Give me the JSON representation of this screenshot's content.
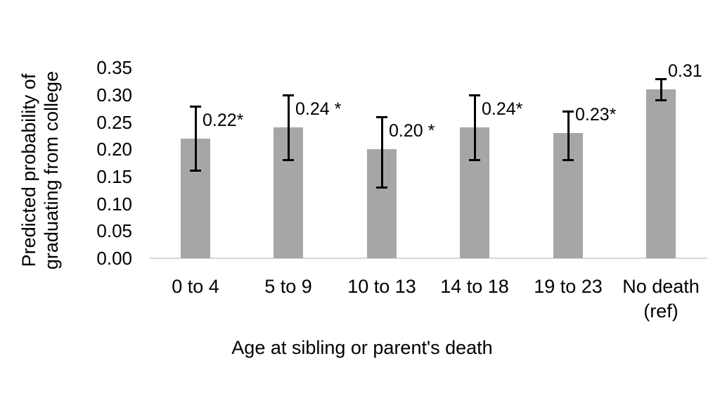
{
  "chart_data": {
    "type": "bar",
    "title": "",
    "xlabel": "Age at sibling or parent's death",
    "ylabel_lines": [
      "Predicted probability of",
      "graduating from college"
    ],
    "ylim": [
      0,
      0.35
    ],
    "ytick_step": 0.05,
    "ytick_labels": [
      "0.00",
      "0.05",
      "0.10",
      "0.15",
      "0.20",
      "0.25",
      "0.30",
      "0.35"
    ],
    "grid": false,
    "legend_position": "none",
    "bar_color": "#a6a6a6",
    "error_bar_color": "#000000",
    "axis_line_color": "#d9d9d9",
    "bars": [
      {
        "category": "0 to 4",
        "category_line2": "",
        "value": 0.22,
        "label": "0.22*",
        "error_low": 0.16,
        "error_high": 0.28
      },
      {
        "category": "5 to 9",
        "category_line2": "",
        "value": 0.24,
        "label": "0.24 *",
        "error_low": 0.18,
        "error_high": 0.3
      },
      {
        "category": "10 to 13",
        "category_line2": "",
        "value": 0.2,
        "label": "0.20 *",
        "error_low": 0.13,
        "error_high": 0.26
      },
      {
        "category": "14 to 18",
        "category_line2": "",
        "value": 0.24,
        "label": "0.24*",
        "error_low": 0.18,
        "error_high": 0.3
      },
      {
        "category": "19 to 23",
        "category_line2": "",
        "value": 0.23,
        "label": "0.23*",
        "error_low": 0.18,
        "error_high": 0.27
      },
      {
        "category": "No death",
        "category_line2": "(ref)",
        "value": 0.31,
        "label": "0.31",
        "error_low": 0.29,
        "error_high": 0.33
      }
    ]
  }
}
